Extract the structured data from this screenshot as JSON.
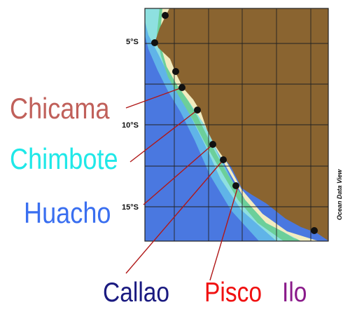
{
  "map": {
    "credit": "Ocean Data View",
    "latitude_labels": [
      "5°S",
      "10°S",
      "15°S"
    ],
    "colors": {
      "land": "#8a6430",
      "shelf": "#f2ecc0",
      "ocean_deep": "#4a78e0",
      "ocean_mid": "#60b4e8",
      "ocean_shallow": "#8ee0e0",
      "green_band": "#6ccf9a",
      "station_marker": "#111111",
      "leader_line": "#b01818"
    }
  },
  "ports": [
    {
      "name": "Chicama",
      "color": "#c0605a"
    },
    {
      "name": "Chimbote",
      "color": "#1fe8e8"
    },
    {
      "name": "Huacho",
      "color": "#3a6ff0"
    },
    {
      "name": "Callao",
      "color": "#1a1a80"
    },
    {
      "name": "Pisco",
      "color": "#f01010"
    },
    {
      "name": "Ilo",
      "color": "#8a1a8a"
    }
  ],
  "stations_count": 9
}
